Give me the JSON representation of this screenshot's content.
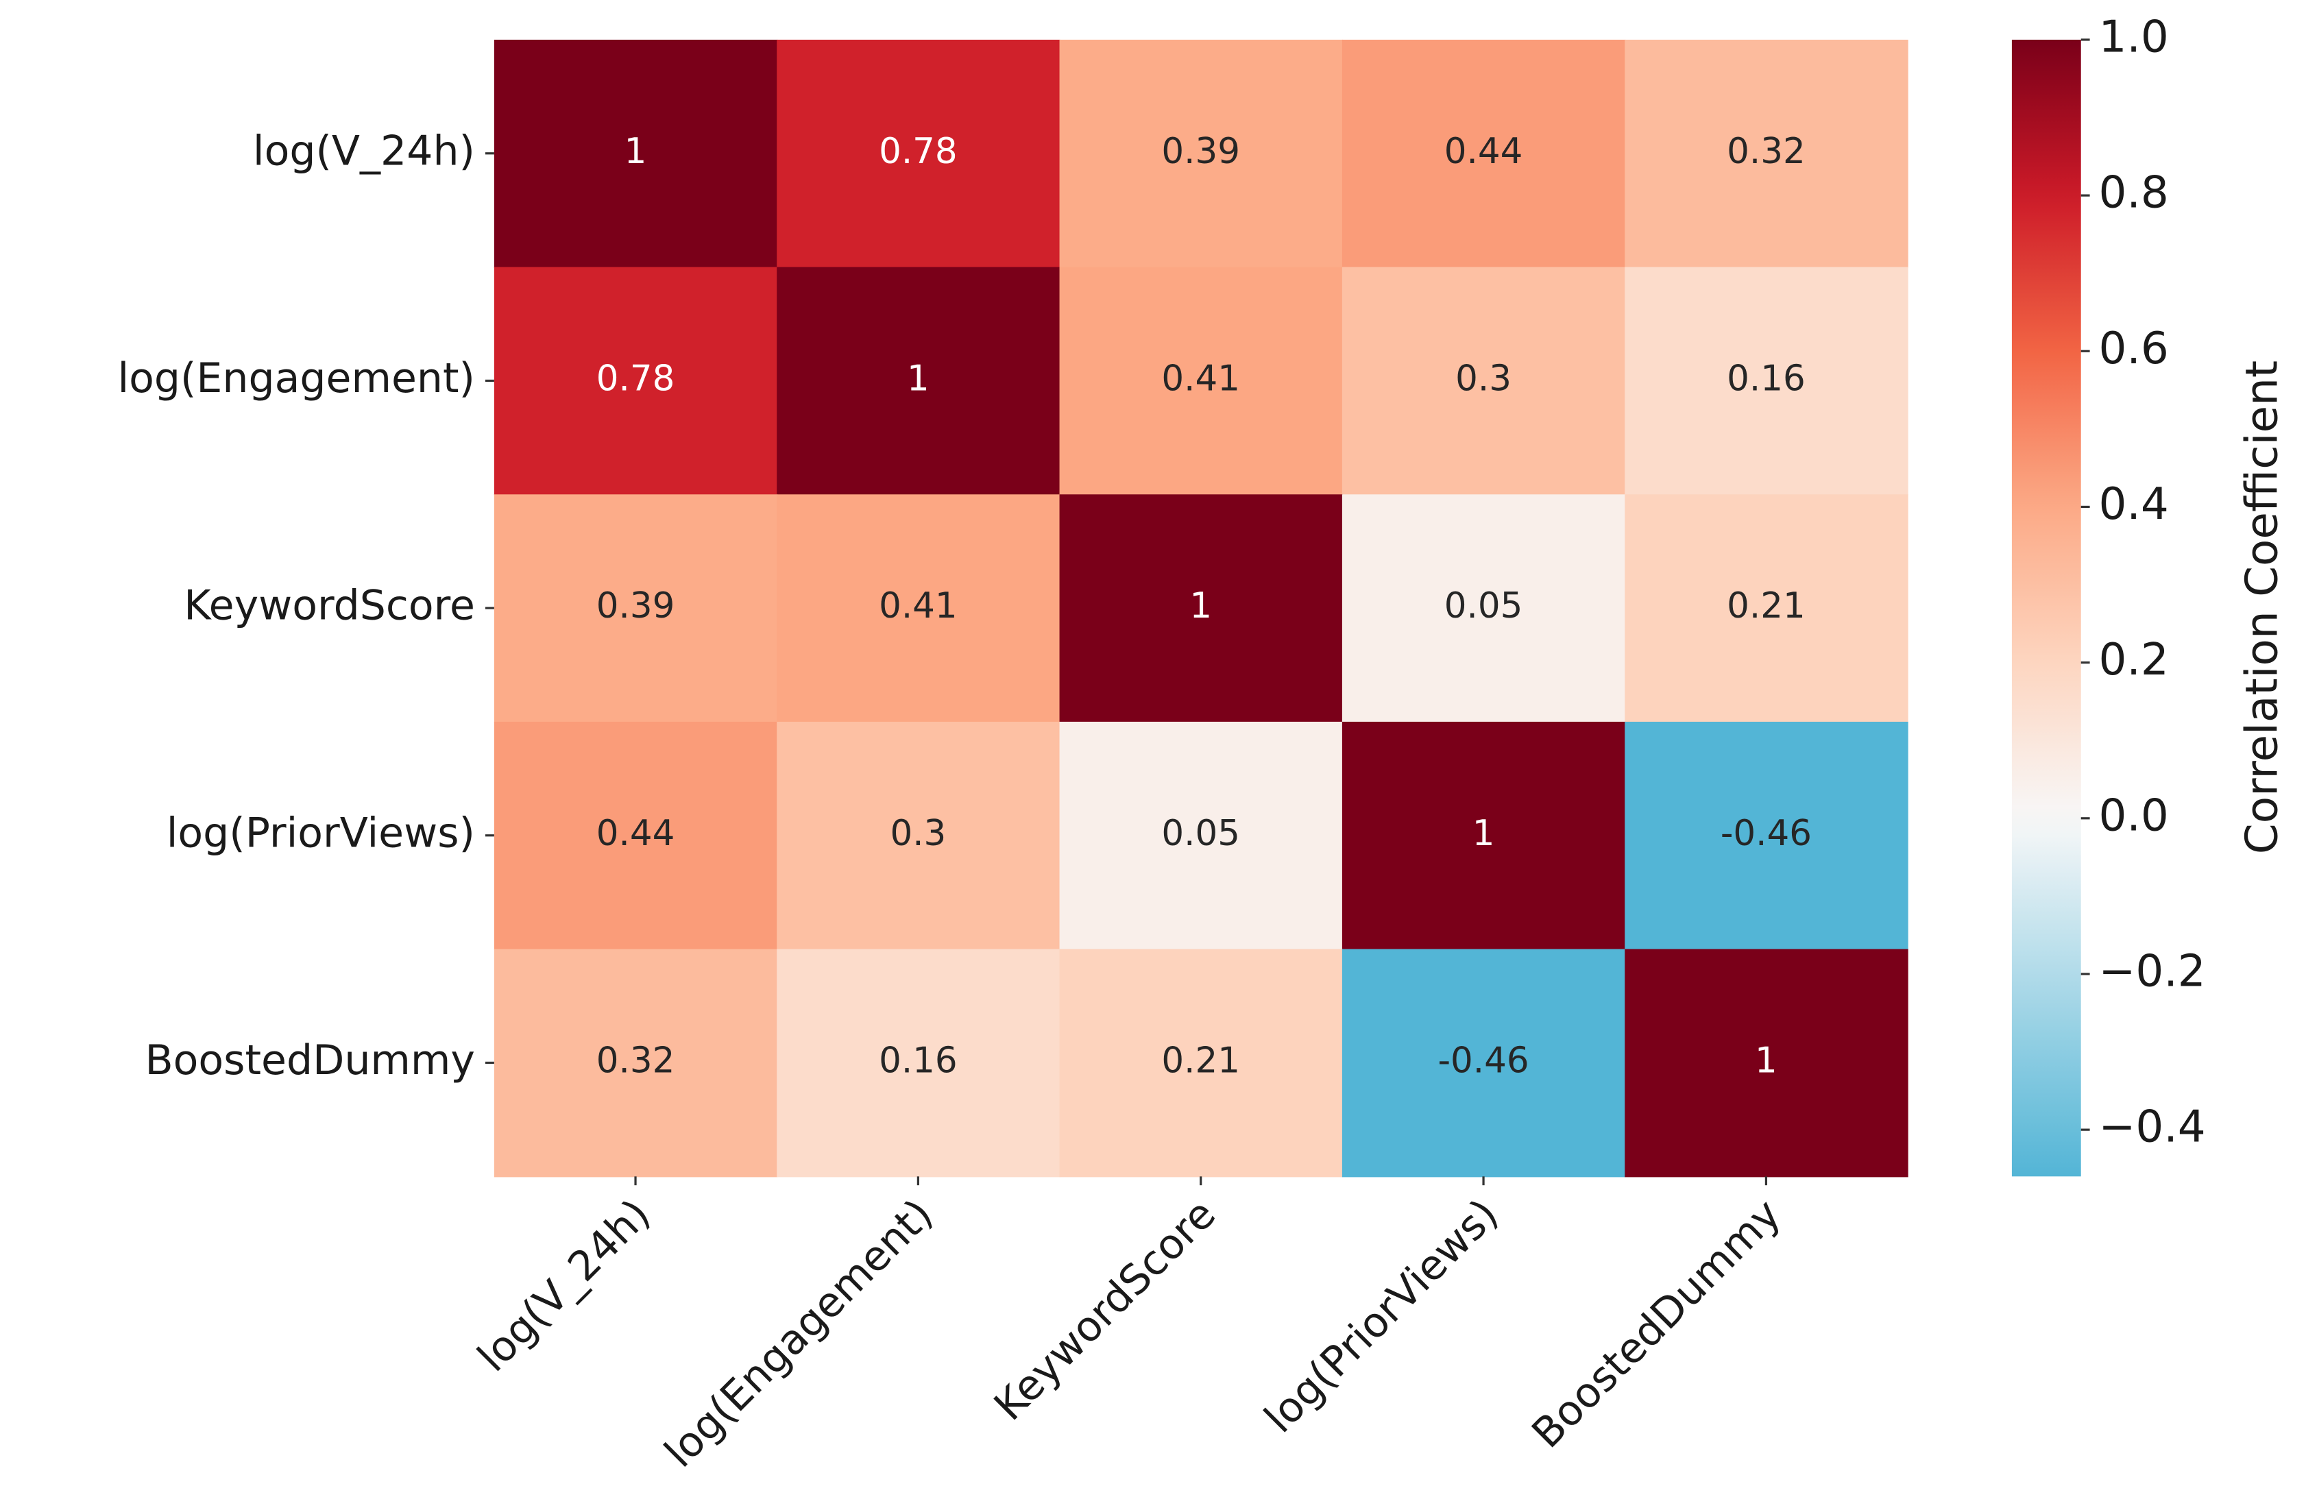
{
  "chart_data": {
    "type": "heatmap",
    "rows": [
      "log(V_24h)",
      "log(Engagement)",
      "KeywordScore",
      "log(PriorViews)",
      "BoostedDummy"
    ],
    "columns": [
      "log(V_24h)",
      "log(Engagement)",
      "KeywordScore",
      "log(PriorViews)",
      "BoostedDummy"
    ],
    "values": [
      [
        1,
        0.78,
        0.39,
        0.44,
        0.32
      ],
      [
        0.78,
        1,
        0.41,
        0.3,
        0.16
      ],
      [
        0.39,
        0.41,
        1,
        0.05,
        0.21
      ],
      [
        0.44,
        0.3,
        0.05,
        1,
        -0.46
      ],
      [
        0.32,
        0.16,
        0.21,
        -0.46,
        1
      ]
    ],
    "colorbar_label": "Correlation Coefficient",
    "clim": [
      -0.46,
      1
    ],
    "cticks": [
      {
        "value": 1,
        "label": "1.0"
      },
      0.8,
      0.6,
      0.4,
      0.2,
      {
        "value": 0,
        "label": "0.0"
      },
      {
        "value": -0.2,
        "label": "−0.2"
      },
      {
        "value": -0.4,
        "label": "−0.4"
      }
    ],
    "colorscale": [
      "#53b5d6",
      "#f8f8f8",
      "#fdd5c0",
      "#fcaa86",
      "#f26444",
      "#cc1a28",
      "#7a0019"
    ]
  }
}
